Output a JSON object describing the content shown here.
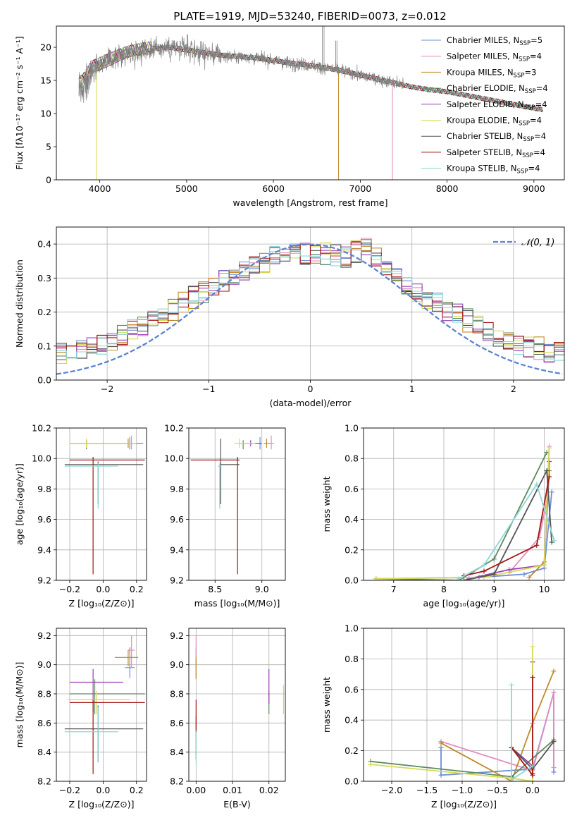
{
  "figure_title": "PLATE=1919, MJD=53240, FIBERID=0073, z=0.012",
  "legend_models": [
    {
      "label": "Chabrier MILES, N",
      "sub": "SSP",
      "tail": "=5",
      "color": "#6b8fd6"
    },
    {
      "label": "Salpeter MILES, N",
      "sub": "SSP",
      "tail": "=4",
      "color": "#e38cbd"
    },
    {
      "label": "Kroupa MILES, N",
      "sub": "SSP",
      "tail": "=3",
      "color": "#c08a2a"
    },
    {
      "label": "Chabrier ELODIE, N",
      "sub": "SSP",
      "tail": "=4",
      "color": "#5f8a5f"
    },
    {
      "label": "Salpeter ELODIE, N",
      "sub": "SSP",
      "tail": "=4",
      "color": "#9b3fb5"
    },
    {
      "label": "Kroupa ELODIE, N",
      "sub": "SSP",
      "tail": "=4",
      "color": "#d6db55"
    },
    {
      "label": "Chabrier STELIB, N",
      "sub": "SSP",
      "tail": "=4",
      "color": "#555555"
    },
    {
      "label": "Salpeter STELIB, N",
      "sub": "SSP",
      "tail": "=4",
      "color": "#a31515"
    },
    {
      "label": "Kroupa STELIB, N",
      "sub": "SSP",
      "tail": "=4",
      "color": "#8fd6d6"
    }
  ],
  "chart_data": [
    {
      "id": "spectrum",
      "type": "line",
      "xlabel": "wavelength [Angstrom, rest frame]",
      "ylabel": "Flux [fλ10⁻¹⁷ erg cm⁻² s⁻¹ A⁻¹]",
      "xlim": [
        3500,
        9350
      ],
      "ylim": [
        0,
        23.2
      ],
      "xticks": [
        "4000",
        "5000",
        "6000",
        "7000",
        "8000",
        "9000"
      ],
      "yticks": [
        "0",
        "5",
        "10",
        "15",
        "20"
      ],
      "data_color": "#808080",
      "continuum": {
        "x": [
          3800,
          3900,
          4000,
          4100,
          4200,
          4300,
          4400,
          4500,
          4600,
          4700,
          4800,
          5000,
          5200,
          5400,
          5600,
          5800,
          6000,
          6200,
          6400,
          6600,
          6800,
          7000,
          7200,
          7400,
          7600,
          7800,
          8000,
          8200,
          8400,
          8600,
          8800,
          9000,
          9100
        ],
        "y": [
          15.0,
          17.0,
          17.5,
          18.0,
          18.5,
          19.0,
          19.3,
          19.6,
          19.8,
          19.9,
          20.0,
          19.6,
          19.2,
          18.8,
          18.6,
          18.4,
          18.0,
          17.6,
          17.3,
          16.9,
          16.4,
          15.8,
          15.2,
          14.6,
          14.0,
          13.6,
          13.3,
          12.8,
          12.3,
          11.8,
          11.3,
          10.8,
          10.6
        ]
      }
    },
    {
      "id": "residuals",
      "type": "histogram",
      "xlabel": "(data-model)/error",
      "ylabel": "Normed distribution",
      "xlim": [
        -2.5,
        2.5
      ],
      "ylim": [
        0,
        0.45
      ],
      "xticks": [
        "−2",
        "−1",
        "0",
        "1",
        "2"
      ],
      "yticks": [
        "0.0",
        "0.1",
        "0.2",
        "0.3",
        "0.4"
      ],
      "gaussian_label": "𝒩(0, 1)",
      "gaussian_color": "#5b84d2",
      "bin_width": 0.1
    },
    {
      "id": "age-vs-Z",
      "type": "scatter",
      "xlabel": "Z [log₁₀(Z/Z⊙)]",
      "ylabel": "age  [log₁₀(age/yr)]",
      "xlim": [
        -0.28,
        0.26
      ],
      "ylim": [
        9.2,
        10.2
      ],
      "xticks": [
        "−0.2",
        "0.0",
        "0.2"
      ],
      "yticks": [
        "9.2",
        "9.4",
        "9.6",
        "9.8",
        "10.0",
        "10.2"
      ],
      "points": [
        {
          "x": 0.16,
          "y": 10.1,
          "xerr": [
            0.35,
            0.08
          ],
          "yerr": [
            0.04,
            0.04
          ],
          "c": "#6b8fd6"
        },
        {
          "x": 0.17,
          "y": 10.1,
          "xerr": [
            0.35,
            0.05
          ],
          "yerr": [
            0.04,
            0.05
          ],
          "c": "#e38cbd"
        },
        {
          "x": 0.15,
          "y": 10.1,
          "xerr": [
            0.33,
            0.08
          ],
          "yerr": [
            0.03,
            0.03
          ],
          "c": "#c08a2a"
        },
        {
          "x": -0.1,
          "y": 10.1,
          "xerr": [
            0.1,
            0.26
          ],
          "yerr": [
            0.04,
            0.02
          ],
          "c": "#5f8a5f"
        },
        {
          "x": -0.1,
          "y": 10.1,
          "xerr": [
            0.1,
            0.3
          ],
          "yerr": [
            0.02,
            0.02
          ],
          "c": "#9b3fb5"
        },
        {
          "x": -0.1,
          "y": 10.1,
          "xerr": [
            0.1,
            0.3
          ],
          "yerr": [
            0.03,
            0.03
          ],
          "c": "#d6db55"
        },
        {
          "x": -0.03,
          "y": 9.96,
          "xerr": [
            0.2,
            0.27
          ],
          "yerr": [
            0.26,
            0.02
          ],
          "c": "#555555"
        },
        {
          "x": -0.06,
          "y": 9.99,
          "xerr": [
            0.14,
            0.31
          ],
          "yerr": [
            0.75,
            0.02
          ],
          "c": "#a31515"
        },
        {
          "x": -0.03,
          "y": 9.95,
          "xerr": [
            0.2,
            0.12
          ],
          "yerr": [
            0.28,
            0.02
          ],
          "c": "#8fd6d6"
        }
      ]
    },
    {
      "id": "age-vs-mass",
      "type": "scatter",
      "xlabel": "mass [log₁₀(M/M⊙)]",
      "ylabel": "",
      "xlim": [
        8.22,
        9.25
      ],
      "ylim": [
        9.2,
        10.2
      ],
      "xticks": [
        "8.5",
        "9.0"
      ],
      "yticks": [
        "9.2",
        "9.4",
        "9.6",
        "9.8",
        "10.0",
        "10.2"
      ],
      "points": [
        {
          "x": 8.98,
          "y": 10.1,
          "xerr": [
            0.02,
            0.02
          ],
          "yerr": [
            0.04,
            0.04
          ],
          "c": "#6b8fd6"
        },
        {
          "x": 9.1,
          "y": 10.1,
          "xerr": [
            0.03,
            0.03
          ],
          "yerr": [
            0.04,
            0.05
          ],
          "c": "#e38cbd"
        },
        {
          "x": 9.05,
          "y": 10.1,
          "xerr": [
            0.03,
            0.03
          ],
          "yerr": [
            0.03,
            0.03
          ],
          "c": "#c08a2a"
        },
        {
          "x": 8.8,
          "y": 10.1,
          "xerr": [
            0.03,
            0.03
          ],
          "yerr": [
            0.04,
            0.02
          ],
          "c": "#5f8a5f"
        },
        {
          "x": 8.88,
          "y": 10.1,
          "xerr": [
            0.08,
            0.12
          ],
          "yerr": [
            0.02,
            0.02
          ],
          "c": "#9b3fb5"
        },
        {
          "x": 8.76,
          "y": 10.1,
          "xerr": [
            0.05,
            0.17
          ],
          "yerr": [
            0.03,
            0.03
          ],
          "c": "#d6db55"
        },
        {
          "x": 8.56,
          "y": 9.96,
          "xerr": [
            0.0,
            0.2
          ],
          "yerr": [
            0.26,
            0.17
          ],
          "c": "#555555"
        },
        {
          "x": 8.74,
          "y": 9.99,
          "xerr": [
            0.5,
            0.02
          ],
          "yerr": [
            0.75,
            0.02
          ],
          "c": "#a31515"
        },
        {
          "x": 8.55,
          "y": 9.95,
          "xerr": [
            0.02,
            0.02
          ],
          "yerr": [
            0.28,
            0.02
          ],
          "c": "#8fd6d6"
        }
      ]
    },
    {
      "id": "weight-vs-age",
      "type": "line",
      "xlabel": "age  [log₁₀(age/yr)]",
      "ylabel": "mass weight",
      "xlim": [
        6.4,
        10.4
      ],
      "ylim": [
        0,
        1.0
      ],
      "xticks": [
        "7",
        "8",
        "9",
        "10"
      ],
      "yticks": [
        "0.0",
        "0.2",
        "0.4",
        "0.6",
        "0.8",
        "1.0"
      ],
      "series": [
        {
          "c": "#6b8fd6",
          "x": [
            6.65,
            8.7,
            9.6,
            10.0,
            10.15
          ],
          "y": [
            0.01,
            0.02,
            0.04,
            0.08,
            0.58
          ]
        },
        {
          "c": "#e38cbd",
          "x": [
            9.3,
            9.9,
            10.05,
            10.1
          ],
          "y": [
            0.05,
            0.28,
            0.52,
            0.88
          ]
        },
        {
          "c": "#c08a2a",
          "x": [
            9.7,
            10.0,
            10.1
          ],
          "y": [
            0.02,
            0.12,
            0.72
          ]
        },
        {
          "c": "#5f8a5f",
          "x": [
            6.65,
            8.3,
            9.0,
            10.05
          ],
          "y": [
            0.01,
            0.0,
            0.14,
            0.84
          ]
        },
        {
          "c": "#9b3fb5",
          "x": [
            8.5,
            9.3,
            10.0,
            10.1
          ],
          "y": [
            0.01,
            0.07,
            0.1,
            0.78
          ]
        },
        {
          "c": "#d6db55",
          "x": [
            6.65,
            8.8,
            10.0,
            10.1
          ],
          "y": [
            0.01,
            0.02,
            0.1,
            0.87
          ]
        },
        {
          "c": "#555555",
          "x": [
            8.4,
            9.0,
            10.05,
            10.15
          ],
          "y": [
            0.0,
            0.04,
            0.72,
            0.25
          ]
        },
        {
          "c": "#a31515",
          "x": [
            8.4,
            8.8,
            9.85,
            10.1
          ],
          "y": [
            0.03,
            0.06,
            0.23,
            0.68
          ]
        },
        {
          "c": "#8fd6d6",
          "x": [
            8.3,
            8.8,
            9.85,
            10.2
          ],
          "y": [
            0.01,
            0.1,
            0.63,
            0.26
          ]
        }
      ]
    },
    {
      "id": "mass-vs-Z",
      "type": "scatter",
      "xlabel": "Z [log₁₀(Z/Z⊙)]",
      "ylabel": "mass [log₁₀(M/M⊙)]",
      "xlim": [
        -0.28,
        0.26
      ],
      "ylim": [
        8.2,
        9.25
      ],
      "xticks": [
        "−0.2",
        "0.0",
        "0.2"
      ],
      "yticks": [
        "8.2",
        "8.4",
        "8.6",
        "8.8",
        "9.0",
        "9.2"
      ],
      "points": [
        {
          "x": 0.16,
          "y": 8.98,
          "xerr": [
            0.03,
            0.03
          ],
          "yerr": [
            0.07,
            0.14
          ],
          "c": "#6b8fd6"
        },
        {
          "x": 0.17,
          "y": 9.1,
          "xerr": [
            0.02,
            0.02
          ],
          "yerr": [
            0.12,
            0.1
          ],
          "c": "#e38cbd"
        },
        {
          "x": 0.15,
          "y": 9.05,
          "xerr": [
            0.08,
            0.06
          ],
          "yerr": [
            0.06,
            0.05
          ],
          "c": "#c08a2a"
        },
        {
          "x": -0.05,
          "y": 8.8,
          "xerr": [
            0.15,
            0.3
          ],
          "yerr": [
            0.14,
            0.1
          ],
          "c": "#5f8a5f"
        },
        {
          "x": -0.06,
          "y": 8.88,
          "xerr": [
            0.14,
            0.18
          ],
          "yerr": [
            0.2,
            0.09
          ],
          "c": "#9b3fb5"
        },
        {
          "x": -0.04,
          "y": 8.76,
          "xerr": [
            0.17,
            0.2
          ],
          "yerr": [
            0.1,
            0.06
          ],
          "c": "#d6db55"
        },
        {
          "x": -0.03,
          "y": 8.56,
          "xerr": [
            0.2,
            0.27
          ],
          "yerr": [
            0.23,
            0.16
          ],
          "c": "#555555"
        },
        {
          "x": -0.06,
          "y": 8.74,
          "xerr": [
            0.14,
            0.31
          ],
          "yerr": [
            0.49,
            0.02
          ],
          "c": "#a31515"
        },
        {
          "x": -0.03,
          "y": 8.54,
          "xerr": [
            0.2,
            0.12
          ],
          "yerr": [
            0.21,
            0.17
          ],
          "c": "#8fd6d6"
        }
      ]
    },
    {
      "id": "mass-vs-EBV",
      "type": "scatter",
      "xlabel": "E(B-V)",
      "ylabel": "",
      "xlim": [
        -0.002,
        0.0245
      ],
      "ylim": [
        8.2,
        9.25
      ],
      "xticks": [
        "0.00",
        "0.01",
        "0.02"
      ],
      "yticks": [
        "8.2",
        "8.4",
        "8.6",
        "8.8",
        "9.0",
        "9.2"
      ],
      "points": [
        {
          "x": 0.0,
          "y": 8.98,
          "xerr": [
            0,
            0
          ],
          "yerr": [
            0.07,
            0.14
          ],
          "c": "#6b8fd6"
        },
        {
          "x": 0.0,
          "y": 9.1,
          "xerr": [
            0,
            0
          ],
          "yerr": [
            0.12,
            0.1
          ],
          "c": "#e38cbd"
        },
        {
          "x": 0.0,
          "y": 9.0,
          "xerr": [
            0,
            0
          ],
          "yerr": [
            0.1,
            0.05
          ],
          "c": "#c08a2a"
        },
        {
          "x": 0.02,
          "y": 8.72,
          "xerr": [
            0,
            0
          ],
          "yerr": [
            0.06,
            0.1
          ],
          "c": "#5f8a5f"
        },
        {
          "x": 0.02,
          "y": 8.88,
          "xerr": [
            0,
            0
          ],
          "yerr": [
            0.15,
            0.09
          ],
          "c": "#9b3fb5"
        },
        {
          "x": 0.024,
          "y": 8.76,
          "xerr": [
            0,
            0
          ],
          "yerr": [
            0.1,
            0.1
          ],
          "c": "#d6db55"
        },
        {
          "x": 0.0,
          "y": 8.5,
          "xerr": [
            0,
            0
          ],
          "yerr": [
            0.15,
            0.15
          ],
          "c": "#555555"
        },
        {
          "x": 0.0,
          "y": 8.65,
          "xerr": [
            0,
            0
          ],
          "yerr": [
            0.1,
            0.11
          ],
          "c": "#a31515"
        },
        {
          "x": 0.0,
          "y": 8.42,
          "xerr": [
            0,
            0
          ],
          "yerr": [
            0.1,
            0.12
          ],
          "c": "#8fd6d6"
        }
      ]
    },
    {
      "id": "weight-vs-Z",
      "type": "line",
      "xlabel": "Z [log₁₀(Z/Z⊙)]",
      "ylabel": "mass weight",
      "xlim": [
        -2.4,
        0.45
      ],
      "ylim": [
        0,
        1.0
      ],
      "xticks": [
        "−2.0",
        "−1.5",
        "−1.0",
        "−0.5",
        "0.0"
      ],
      "yticks": [
        "0.0",
        "0.2",
        "0.4",
        "0.6",
        "0.8",
        "1.0"
      ],
      "series": [
        {
          "c": "#6b8fd6",
          "x": [
            -1.3,
            -1.3,
            0.0,
            0.3,
            0.3
          ],
          "y": [
            0.22,
            0.04,
            0.08,
            0.58,
            0.06
          ]
        },
        {
          "c": "#e38cbd",
          "x": [
            -1.3,
            0.0,
            0.3,
            0.3
          ],
          "y": [
            0.26,
            0.07,
            0.58,
            0.09
          ]
        },
        {
          "c": "#c08a2a",
          "x": [
            -1.3,
            -0.3,
            0.0,
            0.3
          ],
          "y": [
            0.25,
            0.0,
            0.38,
            0.72
          ]
        },
        {
          "c": "#5f8a5f",
          "x": [
            -2.3,
            -0.3,
            0.3
          ],
          "y": [
            0.13,
            0.03,
            0.27
          ]
        },
        {
          "c": "#9b3fb5",
          "x": [
            -0.3,
            0.0,
            0.0
          ],
          "y": [
            0.22,
            0.1,
            0.78
          ]
        },
        {
          "c": "#d6db55",
          "x": [
            -2.3,
            -0.3,
            0.0,
            0.0
          ],
          "y": [
            0.11,
            0.02,
            0.0,
            0.88
          ]
        },
        {
          "c": "#555555",
          "x": [
            -0.3,
            0.0,
            0.3
          ],
          "y": [
            0.22,
            0.08,
            0.26
          ]
        },
        {
          "c": "#a31515",
          "x": [
            -0.3,
            0.0,
            0.0,
            0.0
          ],
          "y": [
            0.22,
            0.04,
            0.68,
            0.05
          ]
        },
        {
          "c": "#8fd6d6",
          "x": [
            -0.3,
            -0.3,
            0.0
          ],
          "y": [
            0.63,
            0.01,
            0.1
          ]
        }
      ]
    }
  ]
}
